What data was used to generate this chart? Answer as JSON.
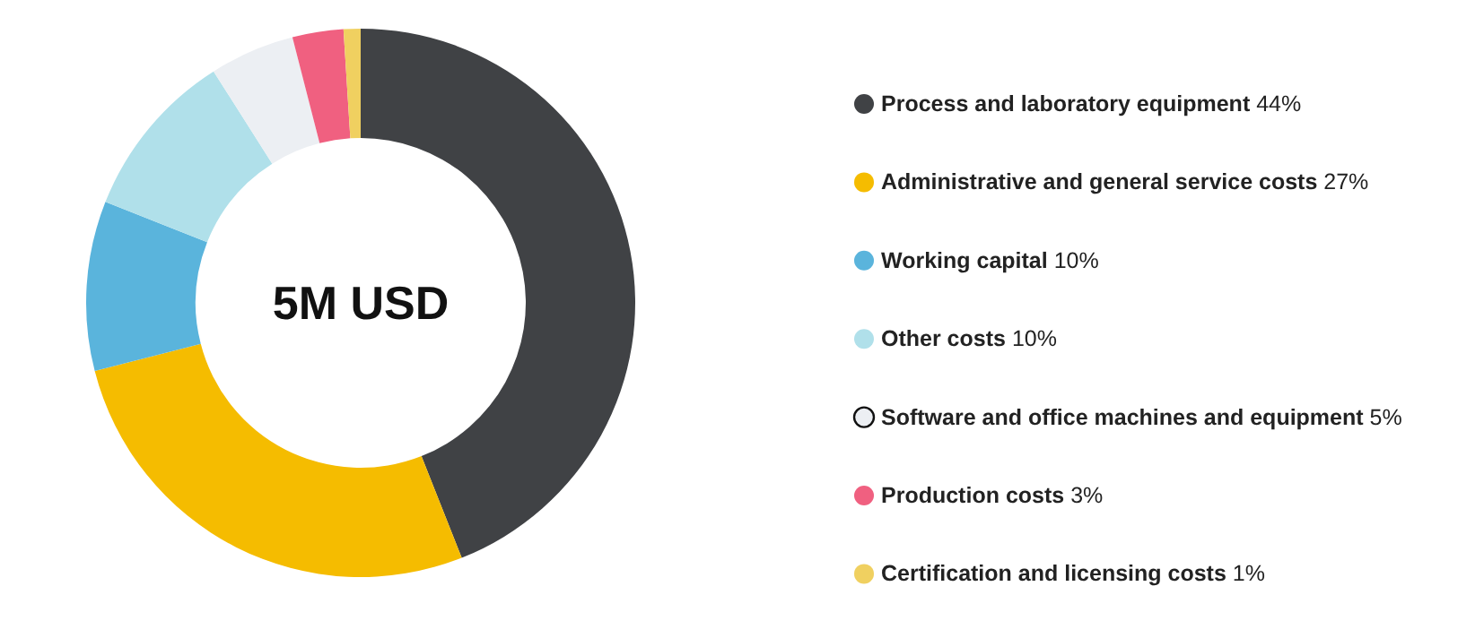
{
  "chart_data": {
    "type": "donut",
    "categories": [
      "Process and laboratory equipment",
      "Administrative and general service costs",
      "Working capital",
      "Other costs",
      "Software and office machines and equipment",
      "Production costs",
      "Certification and licensing costs"
    ],
    "values": [
      44,
      27,
      10,
      10,
      5,
      3,
      1
    ],
    "value_labels": [
      "44%",
      "27%",
      "10%",
      "10%",
      "5%",
      "3%",
      "1%"
    ],
    "colors": [
      "#404245",
      "#f5bc00",
      "#5ab4dc",
      "#b0e0ea",
      "#eceff3",
      "#f06080",
      "#f0d060"
    ],
    "annotations": [
      "5M USD"
    ],
    "legend": "right"
  }
}
